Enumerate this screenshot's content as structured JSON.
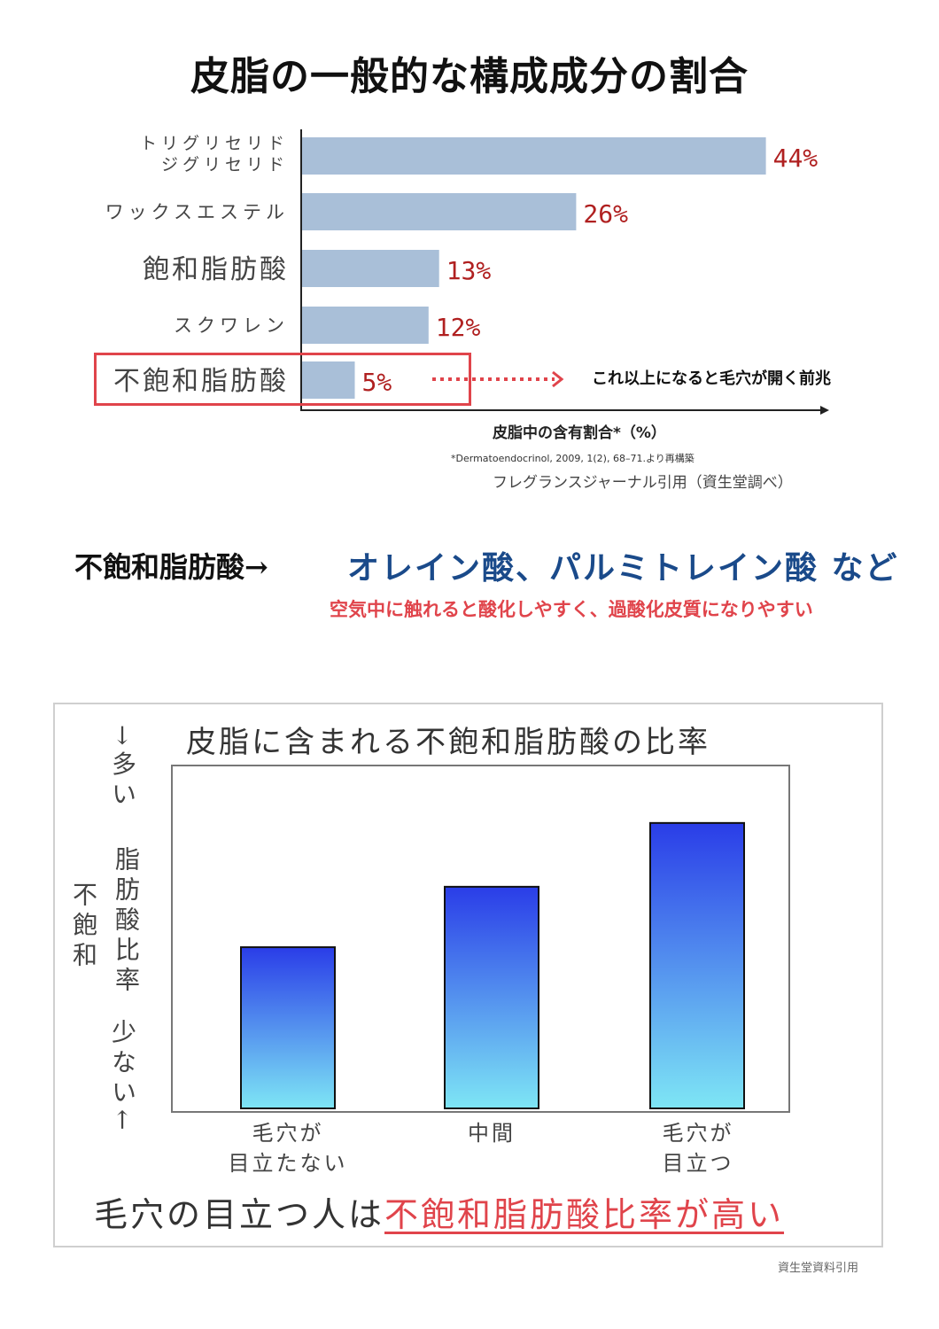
{
  "main_title": "皮脂の一般的な構成成分の割合",
  "chart1": {
    "bars": [
      {
        "label_lines": [
          "トリグリセリド",
          "ジグリセリド"
        ],
        "value_label": "44%"
      },
      {
        "label_lines": [
          "ワックスエステル"
        ],
        "value_label": "26%"
      },
      {
        "label_lines": [
          "飽和脂肪酸"
        ],
        "value_label": "13%"
      },
      {
        "label_lines": [
          "スクワレン"
        ],
        "value_label": "12%"
      },
      {
        "label_lines": [
          "不飽和脂肪酸"
        ],
        "value_label": "5%"
      }
    ],
    "arrow_note": "これ以上になると毛穴が開く前兆",
    "xlabel": "皮脂中の含有割合*（%）",
    "citation": "*Dermatoendocrinol, 2009, 1(2), 68–71.より再構築",
    "source": "フレグランスジャーナル引用（資生堂調べ）"
  },
  "fatty_acid": {
    "label": "不飽和脂肪酸→",
    "examples": "オレイン酸、パルミトレイン酸 など",
    "note": "空気中に触れると酸化しやすく、過酸化皮質になりやすい"
  },
  "chart2": {
    "title": "皮脂に含まれる不飽和脂肪酸の比率",
    "ylabel_top": "→多い",
    "ylabel_mid_line1": "不飽和",
    "ylabel_mid_line2": "脂肪酸比率",
    "ylabel_bottom": "少ない←",
    "xticks": [
      {
        "line1": "毛穴が",
        "line2": "目立たない"
      },
      {
        "line1": "中間",
        "line2": ""
      },
      {
        "line1": "毛穴が",
        "line2": "目立つ"
      }
    ],
    "conclusion_prefix": "毛穴の目立つ人は",
    "conclusion_highlight": "不飽和脂肪酸比率が高い",
    "source": "資生堂資料引用"
  },
  "colors": {
    "bar1": "#a9bfd8",
    "pct_red": "#b02020",
    "highlight_red": "#e0444b",
    "blue_text": "#1a4a8a",
    "bar2_top": "#2a3de8",
    "bar2_bottom": "#7ee6f5"
  },
  "chart_data": [
    {
      "type": "bar",
      "orientation": "horizontal",
      "title": "皮脂の一般的な構成成分の割合",
      "categories": [
        "トリグリセリド ジグリセリド",
        "ワックスエステル",
        "飽和脂肪酸",
        "スクワレン",
        "不飽和脂肪酸"
      ],
      "values": [
        44,
        26,
        13,
        12,
        5
      ],
      "xlabel": "皮脂中の含有割合*（%）",
      "ylabel": "",
      "xlim": [
        0,
        50
      ],
      "grid": false
    },
    {
      "type": "bar",
      "title": "皮脂に含まれる不飽和脂肪酸の比率",
      "categories": [
        "毛穴が目立たない",
        "中間",
        "毛穴が目立つ"
      ],
      "values": [
        48,
        66,
        85
      ],
      "ylabel": "不飽和 脂肪酸比率",
      "ylim": [
        0,
        100
      ],
      "grid": false
    }
  ]
}
